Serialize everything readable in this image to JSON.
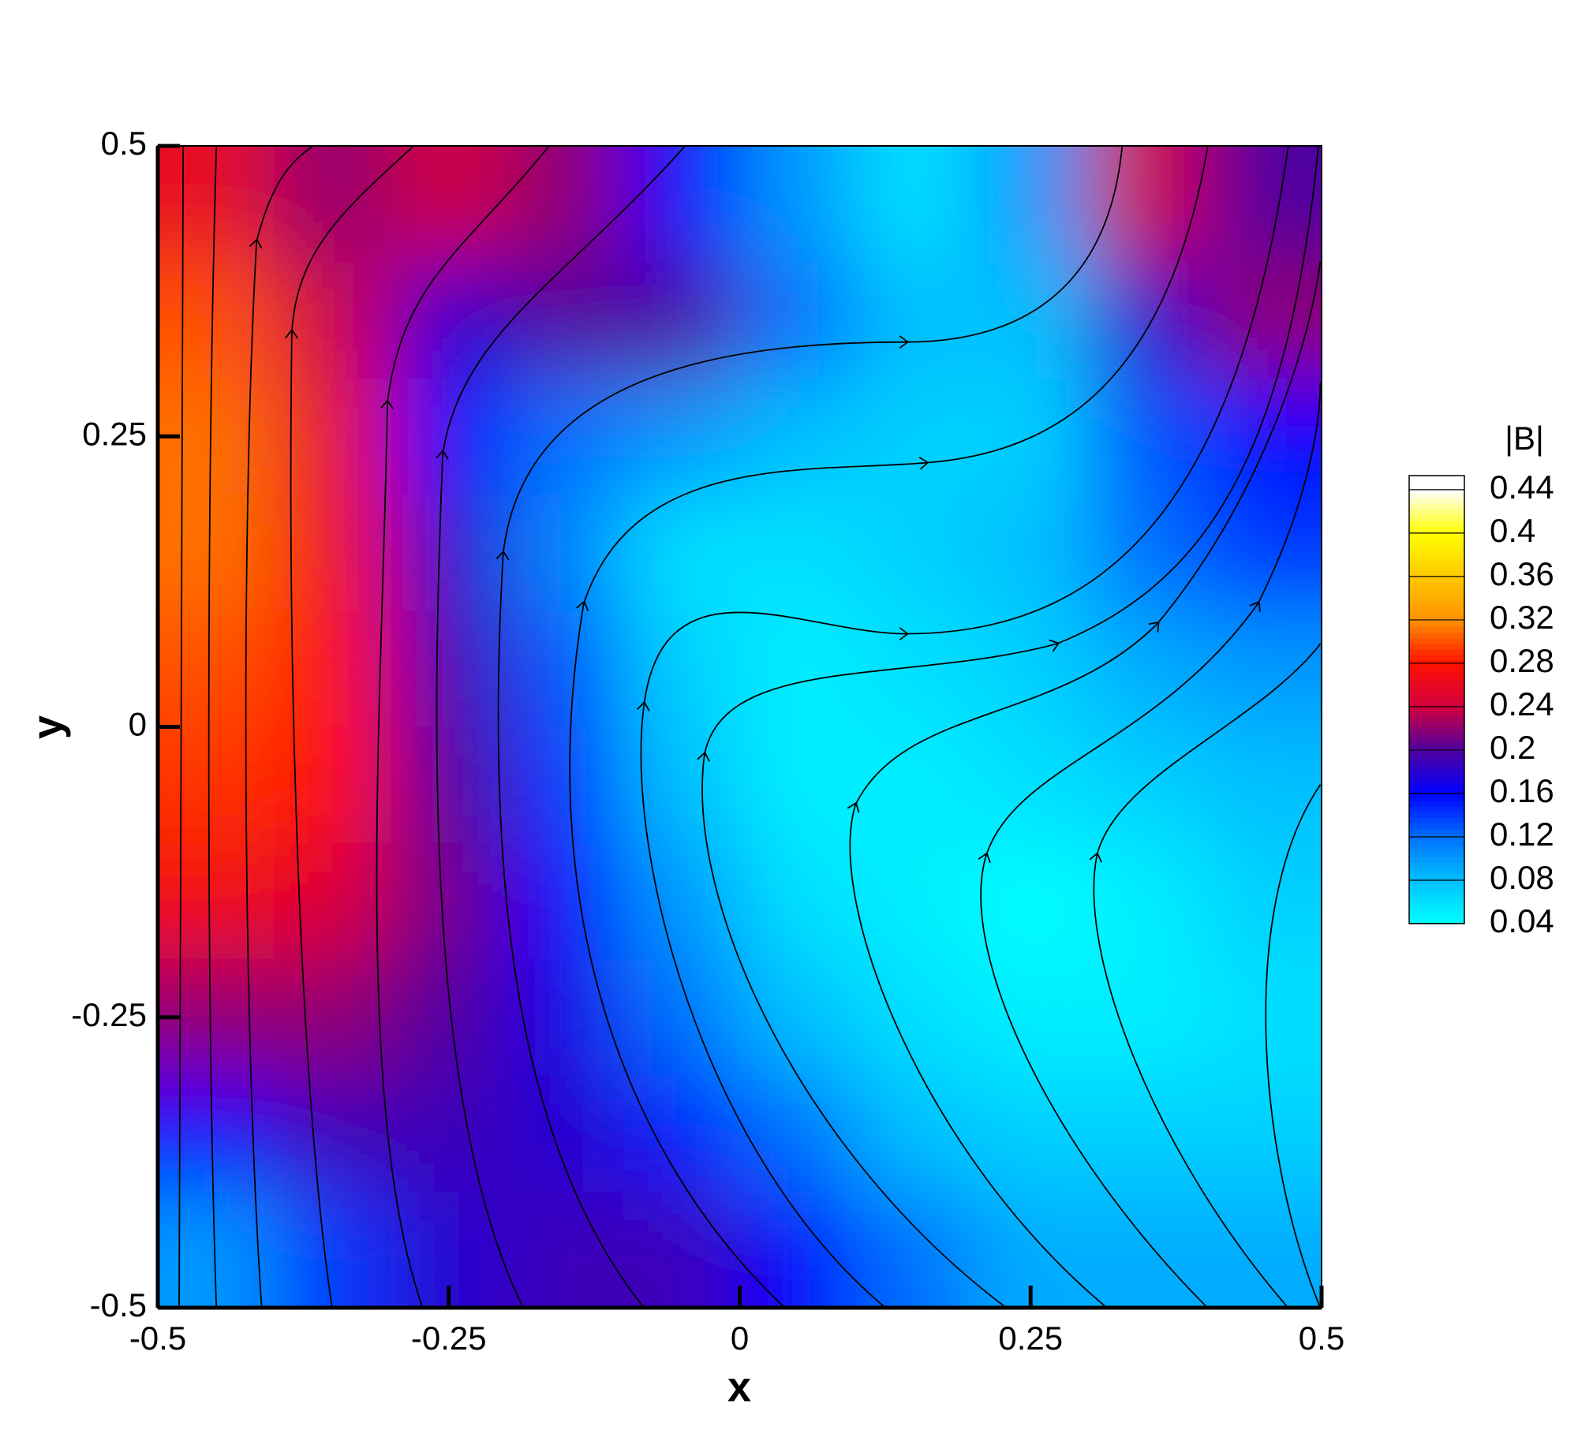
{
  "chart_data": {
    "type": "contour",
    "xlabel": "x",
    "ylabel": "y",
    "xlim": [
      -0.5,
      0.5
    ],
    "ylim": [
      -0.5,
      0.5
    ],
    "xticks": [
      -0.5,
      -0.25,
      0,
      0.25,
      0.5
    ],
    "yticks": [
      -0.5,
      -0.25,
      0,
      0.25,
      0.5
    ],
    "x": [
      -0.45,
      -0.35,
      -0.25,
      -0.15,
      -0.05,
      0.05,
      0.15,
      0.25,
      0.35,
      0.45
    ],
    "y": [
      0.45,
      0.35,
      0.25,
      0.15,
      0.05,
      -0.05,
      -0.15,
      -0.25,
      -0.35,
      -0.45
    ],
    "values": [
      [
        0.26,
        0.22,
        0.24,
        0.22,
        0.16,
        0.1,
        0.06,
        0.1,
        0.24,
        0.2
      ],
      [
        0.3,
        0.24,
        0.18,
        0.2,
        0.2,
        0.12,
        0.08,
        0.08,
        0.18,
        0.22
      ],
      [
        0.31,
        0.26,
        0.16,
        0.12,
        0.1,
        0.08,
        0.07,
        0.07,
        0.13,
        0.16
      ],
      [
        0.31,
        0.27,
        0.18,
        0.11,
        0.06,
        0.06,
        0.07,
        0.08,
        0.12,
        0.14
      ],
      [
        0.3,
        0.28,
        0.19,
        0.13,
        0.07,
        0.05,
        0.06,
        0.07,
        0.09,
        0.1
      ],
      [
        0.29,
        0.28,
        0.2,
        0.14,
        0.08,
        0.05,
        0.05,
        0.06,
        0.07,
        0.08
      ],
      [
        0.27,
        0.25,
        0.21,
        0.16,
        0.1,
        0.06,
        0.05,
        0.04,
        0.05,
        0.07
      ],
      [
        0.22,
        0.22,
        0.2,
        0.17,
        0.12,
        0.08,
        0.06,
        0.05,
        0.05,
        0.06
      ],
      [
        0.16,
        0.19,
        0.19,
        0.18,
        0.15,
        0.12,
        0.08,
        0.07,
        0.07,
        0.07
      ],
      [
        0.1,
        0.14,
        0.18,
        0.19,
        0.19,
        0.16,
        0.12,
        0.09,
        0.09,
        0.09
      ]
    ],
    "colorbar": {
      "label": "|B|",
      "lim": [
        0.04,
        0.453
      ],
      "ticks": [
        0.04,
        0.08,
        0.12,
        0.16,
        0.2,
        0.24,
        0.28,
        0.32,
        0.36,
        0.4,
        0.44
      ],
      "colors": [
        "#00ffff",
        "#00c0ff",
        "#0070ff",
        "#0000ff",
        "#5000a0",
        "#d00040",
        "#ff1000",
        "#ff9000",
        "#ffc800",
        "#ffff00",
        "#ffffff"
      ]
    }
  }
}
